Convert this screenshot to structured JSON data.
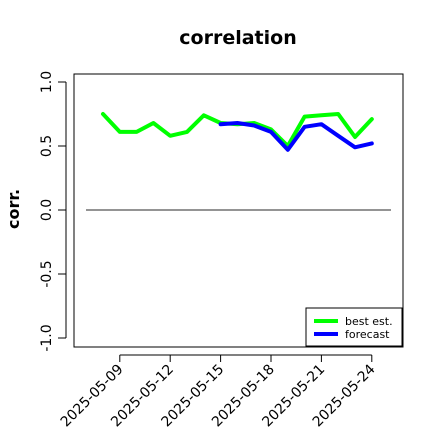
{
  "chart_data": {
    "type": "line",
    "title": "correlation",
    "ylabel": "corr.",
    "xlabel": "",
    "ylim": [
      -1.0,
      1.0
    ],
    "yticks": [
      "-1.0",
      "-0.5",
      "0.0",
      "0.5",
      "1.0"
    ],
    "ytick_values": [
      -1.0,
      -0.5,
      0.0,
      0.5,
      1.0
    ],
    "x_dates": [
      "2025-05-08",
      "2025-05-09",
      "2025-05-10",
      "2025-05-11",
      "2025-05-12",
      "2025-05-13",
      "2025-05-14",
      "2025-05-15",
      "2025-05-16",
      "2025-05-17",
      "2025-05-18",
      "2025-05-19",
      "2025-05-20",
      "2025-05-21",
      "2025-05-22",
      "2025-05-23",
      "2025-05-24"
    ],
    "xticks": [
      {
        "label": "2025-05-09",
        "color": "#000000"
      },
      {
        "label": "2025-05-12",
        "color": "#000000"
      },
      {
        "label": "2025-05-15",
        "color": "#228B22"
      },
      {
        "label": "2025-05-18",
        "color": "#000000"
      },
      {
        "label": "2025-05-21",
        "color": "#000000"
      },
      {
        "label": "2025-05-24",
        "color": "#000000"
      }
    ],
    "xtick_dates": [
      "2025-05-09",
      "2025-05-12",
      "2025-05-15",
      "2025-05-18",
      "2025-05-21",
      "2025-05-24"
    ],
    "series": [
      {
        "name": "best est.",
        "color": "#00ff00",
        "x": [
          "2025-05-08",
          "2025-05-09",
          "2025-05-10",
          "2025-05-11",
          "2025-05-12",
          "2025-05-13",
          "2025-05-14",
          "2025-05-15",
          "2025-05-16",
          "2025-05-17",
          "2025-05-18",
          "2025-05-19",
          "2025-05-20",
          "2025-05-21",
          "2025-05-22",
          "2025-05-23",
          "2025-05-24"
        ],
        "values": [
          0.75,
          0.61,
          0.61,
          0.68,
          0.58,
          0.61,
          0.74,
          0.68,
          0.67,
          0.68,
          0.63,
          0.5,
          0.73,
          0.74,
          0.75,
          0.57,
          0.71
        ]
      },
      {
        "name": "forecast",
        "color": "#0000ff",
        "x": [
          "2025-05-15",
          "2025-05-16",
          "2025-05-17",
          "2025-05-18",
          "2025-05-19",
          "2025-05-20",
          "2025-05-21",
          "2025-05-22",
          "2025-05-23",
          "2025-05-24"
        ],
        "values": [
          0.67,
          0.68,
          0.66,
          0.61,
          0.47,
          0.65,
          0.67,
          0.58,
          0.49,
          0.52
        ]
      }
    ],
    "reference_line": {
      "y": 0.0,
      "color": "#555555"
    },
    "legend": {
      "position": "bottom-right",
      "entries": [
        "best est.",
        "forecast"
      ]
    },
    "grid": false
  }
}
